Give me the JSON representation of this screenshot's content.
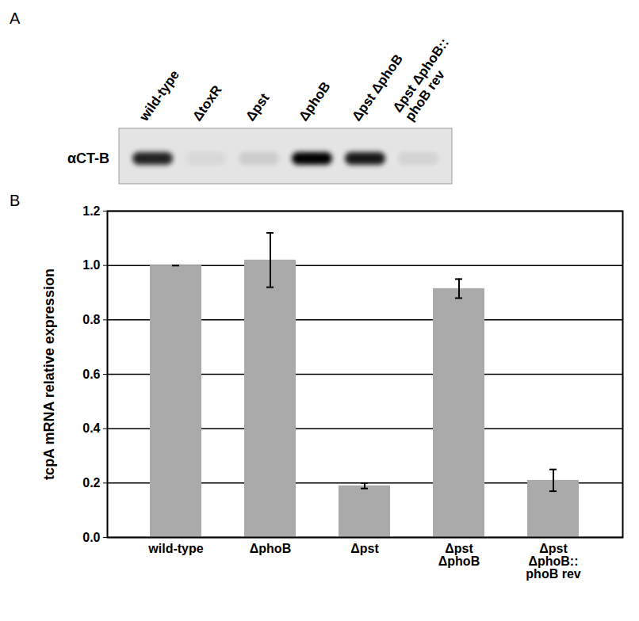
{
  "blot": {
    "panel_label": "A",
    "row_label": "αCT-B",
    "lanes": [
      "wild-type",
      "ΔtoxR",
      "Δpst",
      "ΔphoB",
      "Δpst ΔphoB",
      "Δpst ΔphoB::\nphoB rev"
    ],
    "band_intensity": [
      0.85,
      0.05,
      0.1,
      1.0,
      0.9,
      0.07
    ]
  },
  "chart_data": {
    "panel_label": "B",
    "type": "bar",
    "y_label": "tcpA mRNA relative expression",
    "categories": [
      "wild-type",
      "ΔphoB",
      "Δpst",
      "Δpst\nΔphoB",
      "Δpst\nΔphoB::\nphoB rev"
    ],
    "values": [
      1.0,
      1.02,
      0.19,
      0.915,
      0.21
    ],
    "errors": [
      0,
      0.1,
      0.01,
      0.035,
      0.04
    ],
    "color": "#aaaaaa",
    "ylim": [
      0,
      1.2
    ],
    "yticks": [
      0,
      0.2,
      0.4,
      0.6,
      0.8,
      1,
      1.2
    ],
    "grid": true
  }
}
